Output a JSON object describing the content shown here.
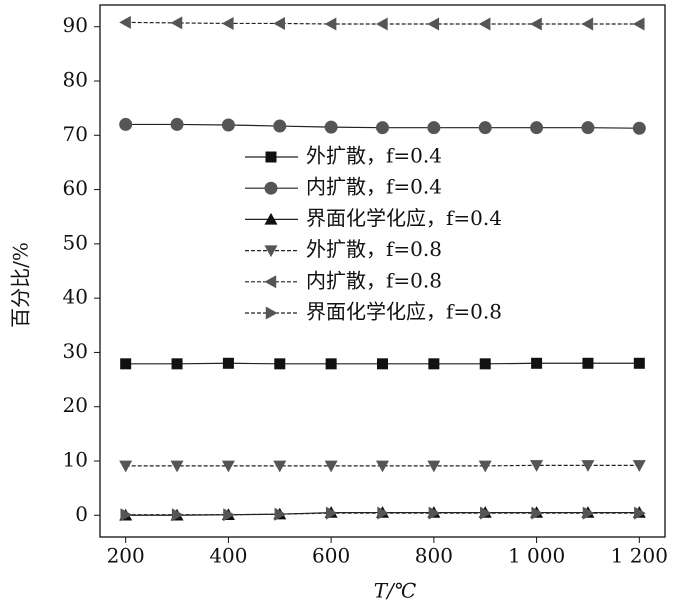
{
  "chart_data": {
    "type": "line",
    "x_label": "T/℃",
    "y_label": "百分比/%",
    "x": [
      200,
      300,
      400,
      500,
      600,
      700,
      800,
      900,
      1000,
      1100,
      1200
    ],
    "xlim": [
      150,
      1250
    ],
    "xticks": [
      200,
      400,
      600,
      800,
      {
        "value": 1000,
        "label": "1 000"
      },
      {
        "value": 1200,
        "label": "1 200"
      }
    ],
    "ylim": [
      -4,
      94
    ],
    "yticks": [
      0,
      10,
      20,
      30,
      40,
      50,
      60,
      70,
      80,
      90
    ],
    "series": [
      {
        "name": "外扩散，f=0.4",
        "color": "#111111",
        "marker": "square",
        "dashed": false,
        "values": [
          27.9,
          27.9,
          28,
          27.9,
          27.9,
          27.9,
          27.9,
          27.9,
          28,
          28,
          28
        ]
      },
      {
        "name": "内扩散，f=0.4",
        "color": "#555555",
        "marker": "circle",
        "dashed": false,
        "values": [
          72,
          72,
          71.9,
          71.7,
          71.5,
          71.4,
          71.4,
          71.4,
          71.4,
          71.4,
          71.3
        ]
      },
      {
        "name": "界面化学化应，f=0.4",
        "color": "#111111",
        "marker": "triangle-up",
        "dashed": false,
        "values": [
          0,
          0,
          0.1,
          0.2,
          0.5,
          0.5,
          0.5,
          0.5,
          0.5,
          0.5,
          0.5
        ]
      },
      {
        "name": "外扩散，f=0.8",
        "color": "#555555",
        "marker": "triangle-down",
        "dashed": true,
        "values": [
          9.1,
          9.1,
          9.1,
          9.1,
          9.1,
          9.1,
          9.1,
          9.1,
          9.2,
          9.2,
          9.2
        ]
      },
      {
        "name": "内扩散，f=0.8",
        "color": "#555555",
        "marker": "triangle-left",
        "dashed": true,
        "values": [
          90.8,
          90.7,
          90.6,
          90.6,
          90.5,
          90.5,
          90.5,
          90.5,
          90.5,
          90.5,
          90.5
        ]
      },
      {
        "name": "界面化学化应，f=0.8",
        "color": "#555555",
        "marker": "triangle-right",
        "dashed": true,
        "values": [
          0.1,
          0.1,
          0.1,
          0.2,
          0.4,
          0.4,
          0.4,
          0.4,
          0.4,
          0.4,
          0.4
        ]
      }
    ]
  }
}
